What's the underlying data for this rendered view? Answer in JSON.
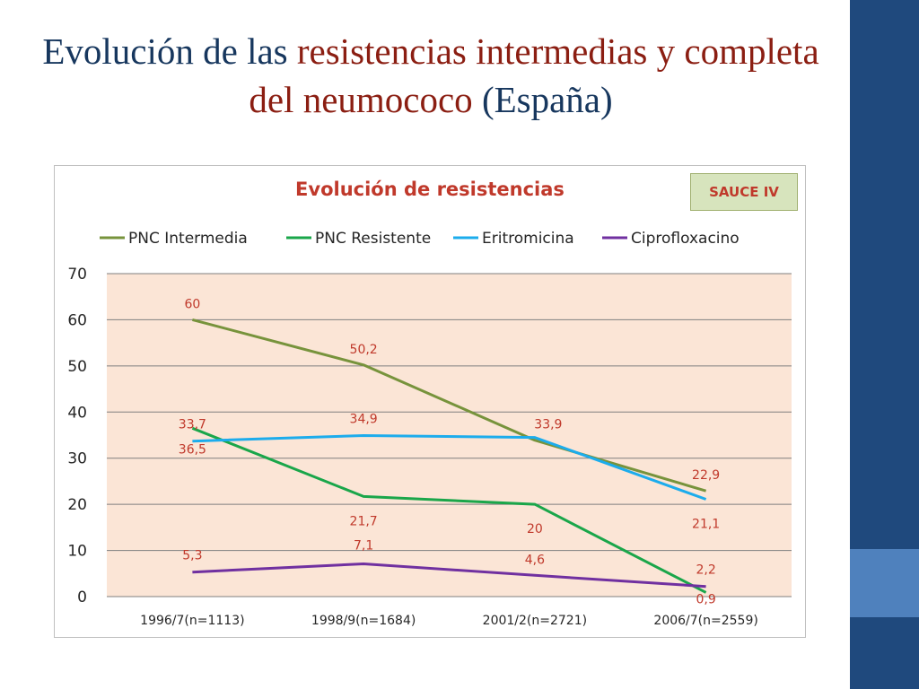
{
  "title": {
    "part1": "Evolución de las ",
    "highlight1": "resistencias intermedias y completa del neumococo",
    "part2": " (España)"
  },
  "badge": "SAUCE IV",
  "colors": {
    "plot_background": "#fbe5d6",
    "sidebar": "#1f497d",
    "sidebar_accent": "#4f81bd",
    "title_highlight": "#8b1e12",
    "data_labels": "#c0392b"
  },
  "chart_data": {
    "type": "line",
    "title": "Evolución de resistencias",
    "xlabel": "",
    "ylabel": "",
    "categories": [
      "1996/7(n=1113)",
      "1998/9(n=1684)",
      "2001/2(n=2721)",
      "2006/7(n=2559)"
    ],
    "ylim": [
      0,
      70
    ],
    "yticks": [
      0,
      10,
      20,
      30,
      40,
      50,
      60,
      70
    ],
    "grid": true,
    "legend_position": "top",
    "series": [
      {
        "name": "PNC Intermedia",
        "color": "#77933c",
        "values": [
          60,
          50.2,
          33.9,
          22.9
        ],
        "labels": [
          "60",
          "50,2",
          "33,9",
          "22,9"
        ]
      },
      {
        "name": "PNC Resistente",
        "color": "#1aa64a",
        "values": [
          36.5,
          21.7,
          20,
          0.9
        ],
        "labels": [
          "36,5",
          "21,7",
          "20",
          "0,9"
        ]
      },
      {
        "name": "Eritromicina",
        "color": "#1cacec",
        "values": [
          33.7,
          34.9,
          34.5,
          21.1
        ],
        "labels": [
          "33,7",
          "34,9",
          "",
          "21,1"
        ]
      },
      {
        "name": "Ciprofloxacino",
        "color": "#7030a0",
        "values": [
          5.3,
          7.1,
          4.6,
          2.2
        ],
        "labels": [
          "5,3",
          "7,1",
          "4,6",
          "2,2"
        ]
      }
    ]
  }
}
